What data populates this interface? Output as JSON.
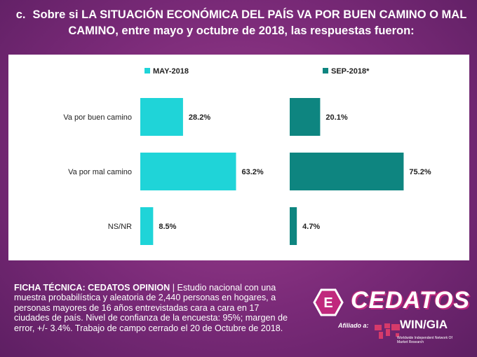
{
  "header": {
    "marker": "c.",
    "title": "Sobre si LA SITUACIÓN ECONÓMICA DEL PAÍS VA POR BUEN CAMINO O MAL CAMINO, entre mayo y octubre de 2018, las respuestas fueron:"
  },
  "chart_data": {
    "type": "bar",
    "orientation": "horizontal",
    "title": "",
    "categories": [
      "Va por buen camino",
      "Va por mal camino",
      "NS/NR"
    ],
    "series": [
      {
        "name": "MAY-2018",
        "values": [
          28.2,
          63.2,
          8.5
        ],
        "labels": [
          "28.2%",
          "63.2%",
          "8.5%"
        ],
        "color": "#1fd4d8"
      },
      {
        "name": "SEP-2018*",
        "values": [
          20.1,
          75.2,
          4.7
        ],
        "labels": [
          "20.1%",
          "75.2%",
          "4.7%"
        ],
        "color": "#0e8580"
      }
    ],
    "xlim": [
      0,
      100
    ],
    "xlabel": "",
    "ylabel": "",
    "legend": "top"
  },
  "footer": {
    "lead": "FICHA TÉCNICA: CEDATOS OPINION",
    "separator": " | ",
    "text": "Estudio nacional con una muestra probabilística y aleatoria de 2,440 personas en hogares, a personas mayores de 16 años entrevistadas cara a cara en 17 ciudades de país. Nivel de confianza de la encuesta:  95%; margen de error, +/- 3.4%. Trabajo de campo cerrado el 20 de Octubre de 2018."
  },
  "logo": {
    "brand": "CEDATOS",
    "affiliate": "Afiliado a:",
    "network": "WIN/GIA",
    "network_sub": "Worldwide Independent Network Of Market Research"
  }
}
